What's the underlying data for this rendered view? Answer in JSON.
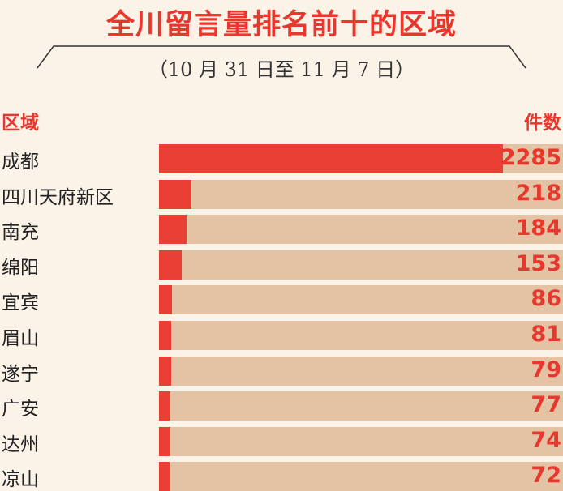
{
  "header": {
    "title": "全川留言量排名前十的区域",
    "subtitle": "（10 月 31 日至 11 月 7 日）"
  },
  "columns": {
    "left": "区域",
    "right": "件数"
  },
  "colors": {
    "accent": "#e8382e",
    "bar": "#ea3f35",
    "track": "#e3c3a4",
    "background": "#fbf2e8"
  },
  "chart_data": {
    "type": "bar",
    "orientation": "horizontal",
    "title": "全川留言量排名前十的区域",
    "subtitle": "（10 月 31 日至 11 月 7 日）",
    "xlabel": "件数",
    "ylabel": "区域",
    "categories": [
      "成都",
      "四川天府新区",
      "南充",
      "绵阳",
      "宜宾",
      "眉山",
      "遂宁",
      "广安",
      "达州",
      "凉山"
    ],
    "values": [
      2285,
      218,
      184,
      153,
      86,
      81,
      79,
      77,
      74,
      72
    ],
    "xlim": [
      0,
      2285
    ],
    "grid": false,
    "legend": "none"
  }
}
